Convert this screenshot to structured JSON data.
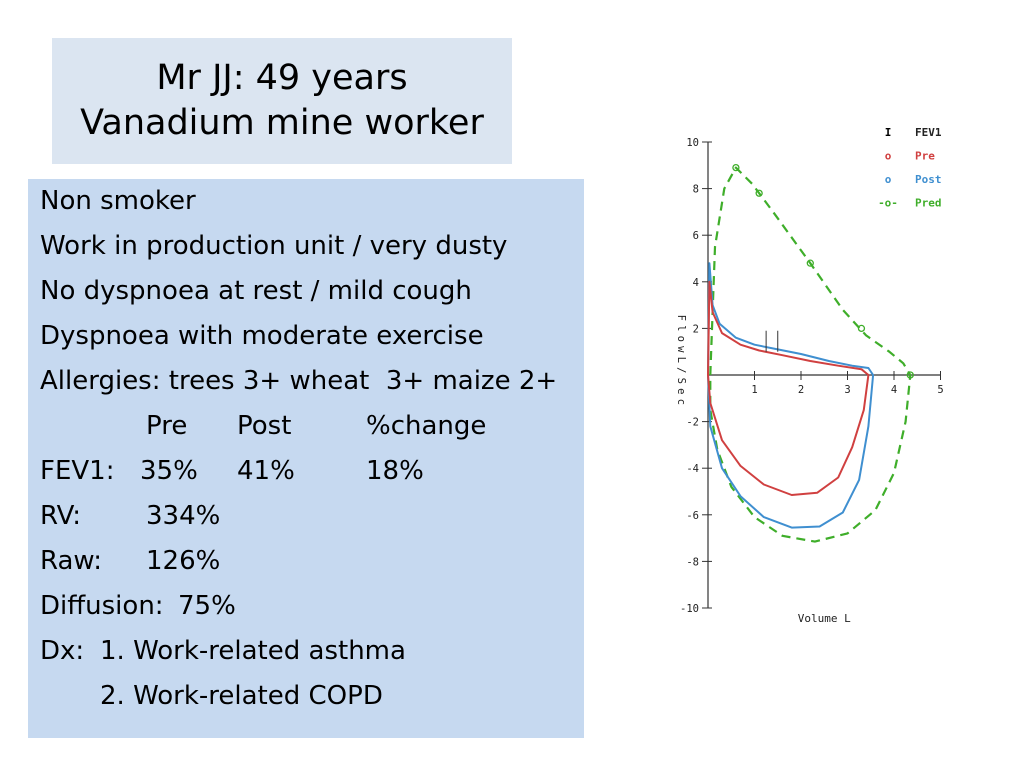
{
  "title": {
    "line1": "Mr JJ: 49 years",
    "line2": "Vanadium mine worker"
  },
  "history": [
    "Non smoker",
    "Work in production unit / very dusty",
    "No dyspnoea at rest / mild cough",
    "Dyspnoea with moderate exercise",
    "Allergies: trees 3+ wheat  3+ maize 2+"
  ],
  "results_table": {
    "headers": [
      "Pre",
      "Post",
      "%change"
    ],
    "fev1": {
      "label": "FEV1:",
      "pre": "35%",
      "post": "41%",
      "change": "18%"
    }
  },
  "other_results": [
    {
      "label": "RV:",
      "value": "334%"
    },
    {
      "label": "Raw:",
      "value": "126%"
    },
    {
      "label": "Diffusion:",
      "value": "75%"
    }
  ],
  "diagnosis": {
    "label": "Dx:",
    "items": [
      "1. Work-related asthma",
      "2. Work-related COPD"
    ]
  },
  "chart_data": {
    "type": "line",
    "title": "",
    "xlabel": "Volume L",
    "ylabel": "Flow L/Sec",
    "xlim": [
      0,
      5
    ],
    "ylim": [
      -10,
      10
    ],
    "xticks": [
      1,
      2,
      3,
      4,
      5
    ],
    "yticks": [
      10,
      8,
      6,
      4,
      2,
      -2,
      -4,
      -6,
      -8,
      -10
    ],
    "legend": [
      {
        "symbol": "I",
        "name": "FEV1",
        "color": "#000000"
      },
      {
        "symbol": "o",
        "name": "Pre",
        "color": "#d04040"
      },
      {
        "symbol": "o",
        "name": "Post",
        "color": "#3f8fd0"
      },
      {
        "symbol": "-o-",
        "name": "Pred",
        "color": "#3fae2a"
      }
    ],
    "legend_position": "top-right",
    "fev1_markers": [
      {
        "series": "Pre",
        "x": 1.25,
        "y": 1.0
      },
      {
        "series": "Post",
        "x": 1.5,
        "y": 1.0
      }
    ],
    "series": [
      {
        "name": "Pred",
        "color": "#3fae2a",
        "dashed": true,
        "markers": true,
        "points": [
          [
            0.05,
            0
          ],
          [
            0.15,
            5.5
          ],
          [
            0.35,
            8.0
          ],
          [
            0.6,
            8.9
          ],
          [
            0.95,
            8.2
          ],
          [
            1.4,
            7.0
          ],
          [
            2.2,
            4.8
          ],
          [
            2.9,
            2.8
          ],
          [
            3.4,
            1.7
          ],
          [
            3.9,
            1.0
          ],
          [
            4.2,
            0.5
          ],
          [
            4.35,
            0
          ],
          [
            4.25,
            -2
          ],
          [
            4.0,
            -4.2
          ],
          [
            3.6,
            -5.8
          ],
          [
            3.0,
            -6.8
          ],
          [
            2.3,
            -7.15
          ],
          [
            1.6,
            -6.9
          ],
          [
            1.0,
            -6.1
          ],
          [
            0.5,
            -4.8
          ],
          [
            0.2,
            -3.2
          ],
          [
            0.05,
            -1.5
          ],
          [
            0.05,
            0
          ]
        ],
        "marker_points": [
          [
            0.6,
            8.9
          ],
          [
            1.1,
            7.8
          ],
          [
            2.2,
            4.8
          ],
          [
            3.3,
            2.0
          ],
          [
            4.35,
            0
          ]
        ]
      },
      {
        "name": "Post",
        "color": "#3f8fd0",
        "dashed": false,
        "markers": false,
        "points": [
          [
            0,
            0
          ],
          [
            0.03,
            4.8
          ],
          [
            0.1,
            3.0
          ],
          [
            0.25,
            2.2
          ],
          [
            0.6,
            1.6
          ],
          [
            1.0,
            1.3
          ],
          [
            1.5,
            1.1
          ],
          [
            2.0,
            0.9
          ],
          [
            2.6,
            0.6
          ],
          [
            3.1,
            0.4
          ],
          [
            3.45,
            0.3
          ],
          [
            3.55,
            0
          ],
          [
            3.45,
            -2.2
          ],
          [
            3.25,
            -4.5
          ],
          [
            2.9,
            -5.9
          ],
          [
            2.4,
            -6.5
          ],
          [
            1.8,
            -6.55
          ],
          [
            1.2,
            -6.1
          ],
          [
            0.7,
            -5.2
          ],
          [
            0.3,
            -4.0
          ],
          [
            0.05,
            -2.2
          ],
          [
            0,
            0
          ]
        ]
      },
      {
        "name": "Pre",
        "color": "#d04040",
        "dashed": false,
        "markers": false,
        "points": [
          [
            0,
            0
          ],
          [
            0.03,
            4.0
          ],
          [
            0.1,
            2.7
          ],
          [
            0.3,
            1.8
          ],
          [
            0.7,
            1.3
          ],
          [
            1.1,
            1.05
          ],
          [
            1.6,
            0.85
          ],
          [
            2.2,
            0.6
          ],
          [
            2.8,
            0.4
          ],
          [
            3.3,
            0.25
          ],
          [
            3.45,
            0
          ],
          [
            3.35,
            -1.5
          ],
          [
            3.1,
            -3.1
          ],
          [
            2.8,
            -4.4
          ],
          [
            2.35,
            -5.05
          ],
          [
            1.8,
            -5.15
          ],
          [
            1.2,
            -4.7
          ],
          [
            0.7,
            -3.9
          ],
          [
            0.3,
            -2.8
          ],
          [
            0.05,
            -1.2
          ],
          [
            0,
            0
          ]
        ]
      }
    ]
  }
}
